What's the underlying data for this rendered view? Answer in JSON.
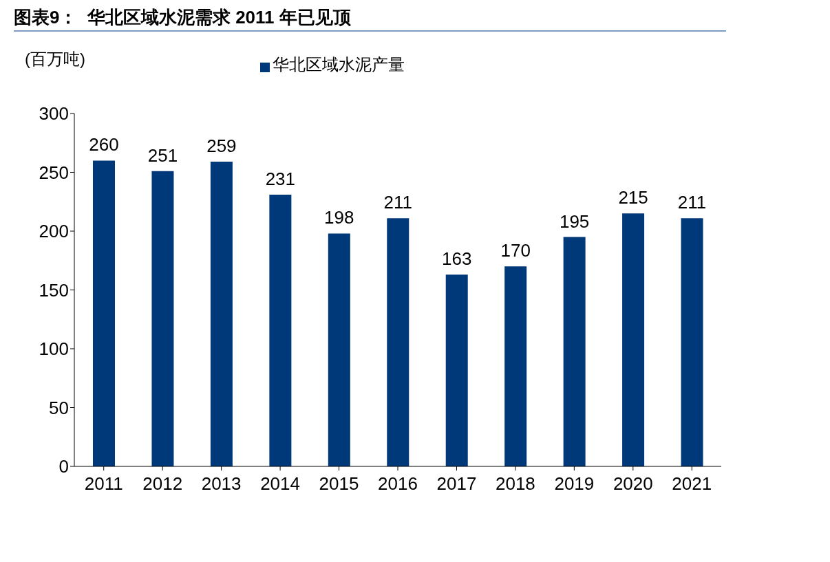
{
  "chart_data": {
    "type": "bar",
    "title": "图表9：  华北区域水泥需求 2011 年已见顶",
    "ylabel": "(百万吨)",
    "categories": [
      "2011",
      "2012",
      "2013",
      "2014",
      "2015",
      "2016",
      "2017",
      "2018",
      "2019",
      "2020",
      "2021"
    ],
    "series": [
      {
        "name": "华北区域水泥产量",
        "color": "#00397a",
        "values": [
          260,
          251,
          259,
          231,
          198,
          211,
          163,
          170,
          195,
          215,
          211
        ]
      }
    ],
    "ylim": [
      0,
      300
    ],
    "yticks": [
      0,
      50,
      100,
      150,
      200,
      250,
      300
    ],
    "data_labels": true,
    "legend": "top"
  }
}
